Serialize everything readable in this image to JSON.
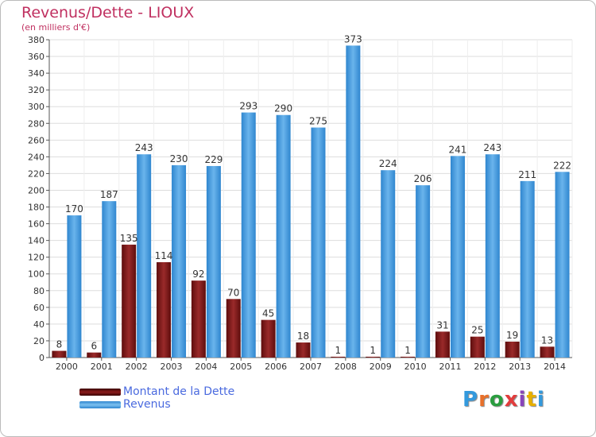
{
  "title": "Revenus/Dette - LIOUX",
  "subtitle": "(en milliers d'€)",
  "logo": {
    "text": "Proxiti",
    "letter_colors": [
      "#3399dd",
      "#e8702a",
      "#2a9d3f",
      "#e23c3c",
      "#8844bb",
      "#e8b000",
      "#3399dd"
    ]
  },
  "legend": [
    {
      "label": "Montant de la Dette",
      "color": "#8b1a1a"
    },
    {
      "label": "Revenus",
      "color": "#4a9ee0"
    }
  ],
  "chart_data": {
    "type": "bar",
    "categories": [
      "2000",
      "2001",
      "2002",
      "2003",
      "2004",
      "2005",
      "2006",
      "2007",
      "2008",
      "2009",
      "2010",
      "2011",
      "2012",
      "2013",
      "2014"
    ],
    "series": [
      {
        "name": "Montant de la Dette",
        "color": "#8b1a1a",
        "values": [
          8,
          6,
          135,
          114,
          92,
          70,
          45,
          18,
          1,
          1,
          1,
          31,
          25,
          19,
          13
        ]
      },
      {
        "name": "Revenus",
        "color": "#4a9ee0",
        "values": [
          170,
          187,
          243,
          230,
          229,
          293,
          290,
          275,
          373,
          224,
          206,
          241,
          243,
          211,
          222
        ]
      }
    ],
    "ylim": [
      0,
      380
    ],
    "ytick_step": 20,
    "grid": true,
    "legend_position": "bottom-left"
  }
}
